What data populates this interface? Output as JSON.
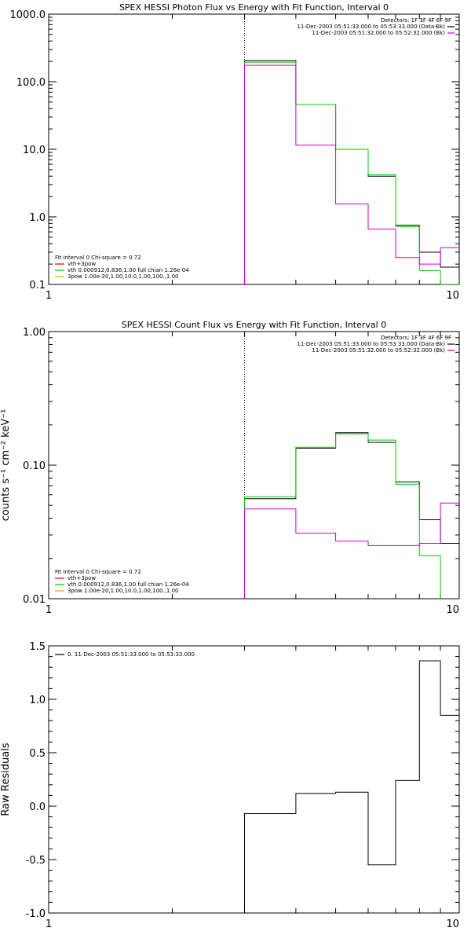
{
  "chart_data": [
    {
      "type": "line",
      "title": "SPEX HESSI Photon Flux vs Energy with Fit Function, Interval 0",
      "xscale": "log",
      "yscale": "log",
      "xlim": [
        1,
        10
      ],
      "ylim": [
        0.1,
        1000
      ],
      "xticks": [
        {
          "v": 1,
          "label": "1"
        },
        {
          "v": 10,
          "label": "10"
        }
      ],
      "yticks": [
        {
          "v": 0.1,
          "label": "0.1"
        },
        {
          "v": 1,
          "label": "1.0"
        },
        {
          "v": 10,
          "label": "10.0"
        },
        {
          "v": 100,
          "label": "100.0"
        },
        {
          "v": 1000,
          "label": "1000.0"
        }
      ],
      "vline": 3,
      "legend_right": {
        "header": "Detectors: 1F 3F 4F 6F 9F",
        "entries": [
          {
            "label": "11-Dec-2003 05:51:33.000 to 05:53:33.000 (Data-Bk)",
            "color": "#000000"
          },
          {
            "label": "11-Dec-2003 05:51:32.000 to 05:52:32.000 (Bk)",
            "color": "#cc00cc"
          }
        ]
      },
      "legend_left": {
        "header": "Fit Interval 0   Chi-square = 0.72",
        "entries": [
          {
            "label": "vth+3pow",
            "color": "#dd0000"
          },
          {
            "label": "vth 0.000912,0.836,1.00  full chian 1.26e-04",
            "color": "#00cc00"
          },
          {
            "label": "3pow 1.00e-20,1.00,10.0,1.00,100.,1.00",
            "color": "#ddaa00"
          }
        ]
      },
      "edges": [
        3,
        4,
        5,
        6,
        7,
        8,
        9,
        10
      ],
      "series": [
        {
          "name": "11-Dec-2003 05:51:33.000 to 05:53:33.000 (Data-Bk)",
          "color": "#000000",
          "values": [
            205,
            46,
            10,
            4.0,
            0.75,
            0.3,
            0.18
          ]
        },
        {
          "name": "vth 0.000912,0.836,1.00  full chian 1.26e-04",
          "color": "#00cc00",
          "values": [
            195,
            46,
            10,
            4.2,
            0.72,
            0.16,
            0.1
          ]
        },
        {
          "name": "11-Dec-2003 05:51:32.000 to 05:52:32.000 (Bk)",
          "color": "#cc00cc",
          "values": [
            175,
            11.5,
            1.55,
            0.66,
            0.25,
            0.2,
            0.35
          ]
        }
      ]
    },
    {
      "type": "line",
      "title": "SPEX HESSI Count Flux vs Energy with Fit Function, Interval 0",
      "ylabel": "counts s⁻¹ cm⁻² keV⁻¹",
      "xscale": "log",
      "yscale": "log",
      "xlim": [
        1,
        10
      ],
      "ylim": [
        0.01,
        1
      ],
      "xticks": [
        {
          "v": 1,
          "label": "1"
        },
        {
          "v": 10,
          "label": "10"
        }
      ],
      "yticks": [
        {
          "v": 0.01,
          "label": "0.01"
        },
        {
          "v": 0.1,
          "label": "0.10"
        },
        {
          "v": 1,
          "label": "1.00"
        }
      ],
      "vline": 3,
      "legend_right": {
        "header": "Detectors: 1F 3F 4F 6F 9F",
        "entries": [
          {
            "label": "11-Dec-2003 05:51:33.000 to 05:53:33.000 (Data-Bk)",
            "color": "#000000"
          },
          {
            "label": "11-Dec-2003 05:51:32.000 to 05:52:32.000 (Bk)",
            "color": "#cc00cc"
          }
        ]
      },
      "legend_left": {
        "header": "Fit Interval 0   Chi-square = 0.72",
        "entries": [
          {
            "label": "vth+3pow",
            "color": "#dd0000"
          },
          {
            "label": "vth 0.000912,0.836,1.00  full chian 1.26e-04",
            "color": "#00cc00"
          },
          {
            "label": "3pow 1.00e-20,1.00,10.0,1.00,100.,1.00",
            "color": "#ddaa00"
          }
        ]
      },
      "edges": [
        3,
        4,
        5,
        6,
        7,
        8,
        9,
        10
      ],
      "series": [
        {
          "name": "11-Dec-2003 05:51:33.000 to 05:53:33.000 (Data-Bk)",
          "color": "#000000",
          "values": [
            0.056,
            0.134,
            0.175,
            0.148,
            0.075,
            0.039,
            0.026
          ]
        },
        {
          "name": "vth 0.000912,0.836,1.00  full chian 1.26e-04",
          "color": "#00cc00",
          "values": [
            0.058,
            0.136,
            0.172,
            0.154,
            0.072,
            0.021,
            0.008
          ]
        },
        {
          "name": "11-Dec-2003 05:51:32.000 to 05:52:32.000 (Bk)",
          "color": "#cc00cc",
          "values": [
            0.047,
            0.031,
            0.027,
            0.025,
            0.025,
            0.026,
            0.052
          ]
        }
      ]
    },
    {
      "type": "line",
      "ylabel": "Raw Residuals",
      "xscale": "log",
      "yscale": "linear",
      "xlim": [
        1,
        10
      ],
      "ylim": [
        -1.0,
        1.5
      ],
      "xticks": [
        {
          "v": 1,
          "label": "1"
        },
        {
          "v": 10,
          "label": "10"
        }
      ],
      "yticks": [
        {
          "v": -1.0,
          "label": "-1.0"
        },
        {
          "v": -0.5,
          "label": "-0.5"
        },
        {
          "v": 0.0,
          "label": "0.0"
        },
        {
          "v": 0.5,
          "label": "0.5"
        },
        {
          "v": 1.0,
          "label": "1.0"
        },
        {
          "v": 1.5,
          "label": "1.5"
        }
      ],
      "legend_left": {
        "entries": [
          {
            "label": "0. 11-Dec-2003 05:51:33.000 to 05:53:33.000",
            "color": "#000000"
          }
        ]
      },
      "edges": [
        3,
        4,
        5,
        6,
        7,
        8,
        9,
        10
      ],
      "series": [
        {
          "name": "0. 11-Dec-2003 05:51:33.000 to 05:53:33.000",
          "color": "#000000",
          "values": [
            -0.07,
            0.12,
            0.13,
            -0.55,
            0.24,
            1.36,
            0.85
          ]
        }
      ]
    }
  ]
}
